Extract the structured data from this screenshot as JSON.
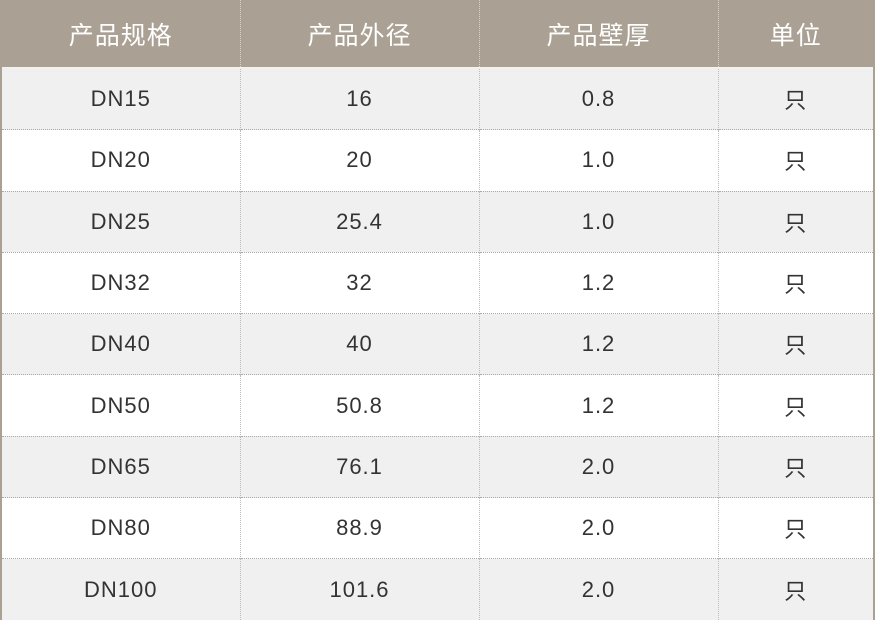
{
  "table": {
    "headers": [
      "产品规格",
      "产品外径",
      "产品壁厚",
      "单位"
    ],
    "rows": [
      [
        "DN15",
        "16",
        "0.8",
        "只"
      ],
      [
        "DN20",
        "20",
        "1.0",
        "只"
      ],
      [
        "DN25",
        "25.4",
        "1.0",
        "只"
      ],
      [
        "DN32",
        "32",
        "1.2",
        "只"
      ],
      [
        "DN40",
        "40",
        "1.2",
        "只"
      ],
      [
        "DN50",
        "50.8",
        "1.2",
        "只"
      ],
      [
        "DN65",
        "76.1",
        "2.0",
        "只"
      ],
      [
        "DN80",
        "88.9",
        "2.0",
        "只"
      ],
      [
        "DN100",
        "101.6",
        "2.0",
        "只"
      ]
    ]
  },
  "colors": {
    "header_bg": "#aaa194",
    "row_alt": "#f0f0f1"
  }
}
